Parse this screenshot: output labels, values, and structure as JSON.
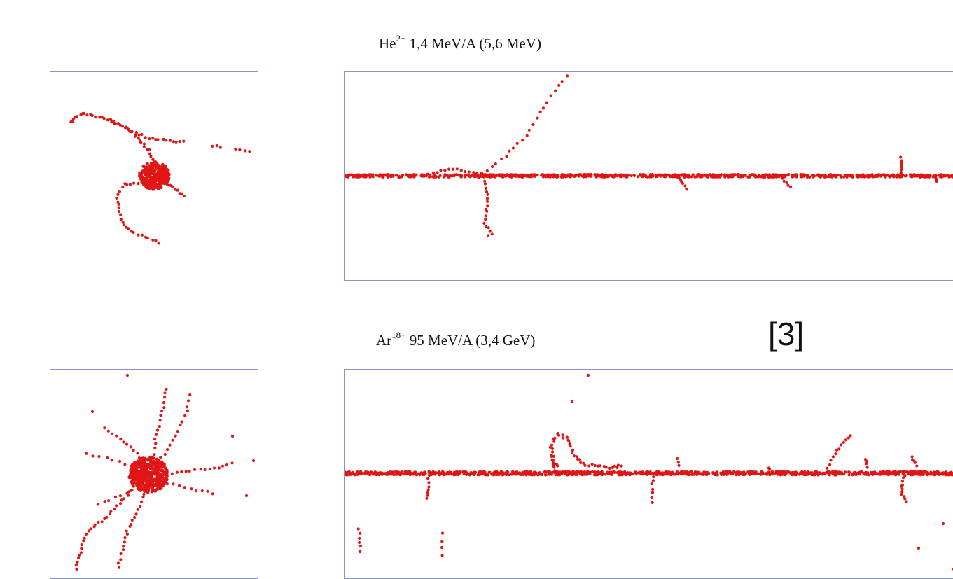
{
  "figure": {
    "reference_label": "[3]",
    "colors": {
      "track": "#e01515",
      "frame": "#8e8ec8",
      "background": "#ffffff"
    },
    "ion_a": {
      "symbol": "He",
      "charge": "2+",
      "energy_text": "1,4 MeV/A (5,6 MeV)"
    },
    "ion_b": {
      "symbol": "Ar",
      "charge": "18+",
      "energy_text": "95 MeV/A (3,4 GeV)"
    }
  }
}
